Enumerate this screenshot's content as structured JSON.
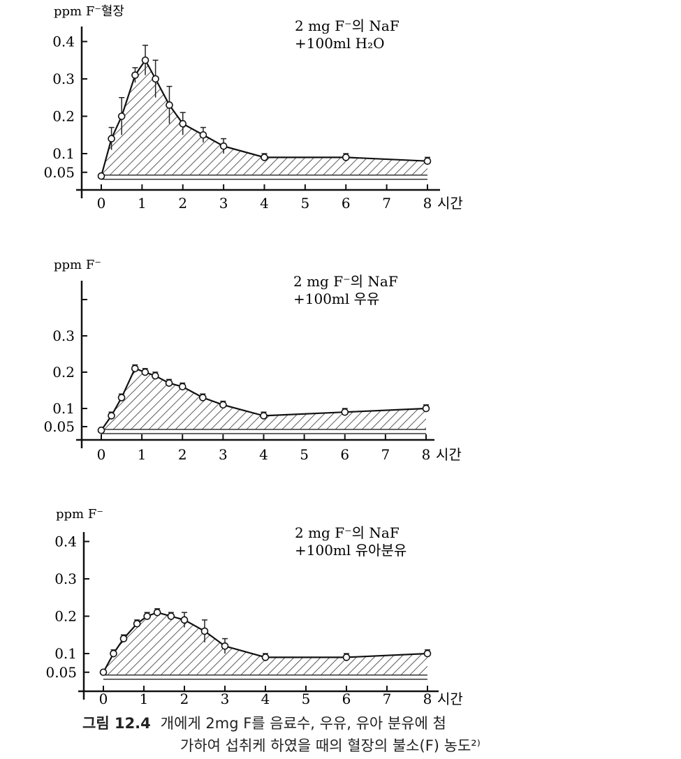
{
  "chart_data": [
    {
      "type": "area",
      "ylabel": "ppm F⁻혈장",
      "xlabel": "시간",
      "annotation": [
        "2 mg F⁻의 NaF",
        "+100ml H₂O"
      ],
      "xticks": [
        "0",
        "1",
        "2",
        "3",
        "4",
        "5",
        "6",
        "7",
        "8"
      ],
      "yticks": [
        "0.05",
        "0.1",
        "0.2",
        "0.3",
        "0.4"
      ],
      "xlim": [
        0,
        8
      ],
      "ylim": [
        0,
        0.4
      ],
      "x": [
        0,
        0.25,
        0.5,
        0.83,
        1.08,
        1.33,
        1.67,
        2,
        2.5,
        3,
        4,
        6,
        8
      ],
      "y": [
        0.04,
        0.14,
        0.2,
        0.31,
        0.35,
        0.3,
        0.23,
        0.18,
        0.15,
        0.12,
        0.09,
        0.09,
        0.08
      ],
      "err": [
        0,
        0.03,
        0.05,
        0.02,
        0.04,
        0.05,
        0.05,
        0.03,
        0.02,
        0.02,
        0.01,
        0.01,
        0.01
      ]
    },
    {
      "type": "area",
      "ylabel": "ppm F⁻",
      "xlabel": "시간",
      "annotation": [
        "2 mg F⁻의 NaF",
        "+100ml 우유"
      ],
      "xticks": [
        "0",
        "1",
        "2",
        "3",
        "4",
        "5",
        "6",
        "7",
        "8"
      ],
      "yticks": [
        "0.05",
        "0.1",
        "0.2",
        "0.3",
        ""
      ],
      "xlim": [
        0,
        8
      ],
      "ylim": [
        0,
        0.4
      ],
      "x": [
        0,
        0.25,
        0.5,
        0.83,
        1.08,
        1.33,
        1.67,
        2,
        2.5,
        3,
        4,
        6,
        8
      ],
      "y": [
        0.04,
        0.08,
        0.13,
        0.21,
        0.2,
        0.19,
        0.17,
        0.16,
        0.13,
        0.11,
        0.08,
        0.09,
        0.1
      ],
      "err": [
        0,
        0.01,
        0.01,
        0.01,
        0.01,
        0.01,
        0.01,
        0.01,
        0.01,
        0.01,
        0.01,
        0.01,
        0.01
      ]
    },
    {
      "type": "area",
      "ylabel": "ppm F⁻",
      "xlabel": "시간",
      "annotation": [
        "2 mg F⁻의 NaF",
        "+100ml 유아분유"
      ],
      "xticks": [
        "0",
        "1",
        "2",
        "3",
        "4",
        "5",
        "6",
        "7",
        "8"
      ],
      "yticks": [
        "0.05",
        "0.1",
        "0.2",
        "0.3",
        "0.4"
      ],
      "xlim": [
        0,
        8
      ],
      "ylim": [
        0,
        0.4
      ],
      "x": [
        0,
        0.25,
        0.5,
        0.83,
        1.08,
        1.33,
        1.67,
        2,
        2.5,
        3,
        4,
        6,
        8
      ],
      "y": [
        0.05,
        0.1,
        0.14,
        0.18,
        0.2,
        0.21,
        0.2,
        0.19,
        0.16,
        0.12,
        0.09,
        0.09,
        0.1
      ],
      "err": [
        0,
        0.01,
        0.01,
        0.01,
        0.01,
        0.01,
        0.01,
        0.02,
        0.03,
        0.02,
        0.01,
        0.01,
        0.01
      ]
    }
  ],
  "caption": {
    "number": "그림 12.4",
    "line1": "개에게 2mg F를 음료수, 우유, 유아 분유에 첨",
    "line2": "가하여 섭취케 하였을 때의 혈장의 불소(F) 농도²⁾"
  }
}
